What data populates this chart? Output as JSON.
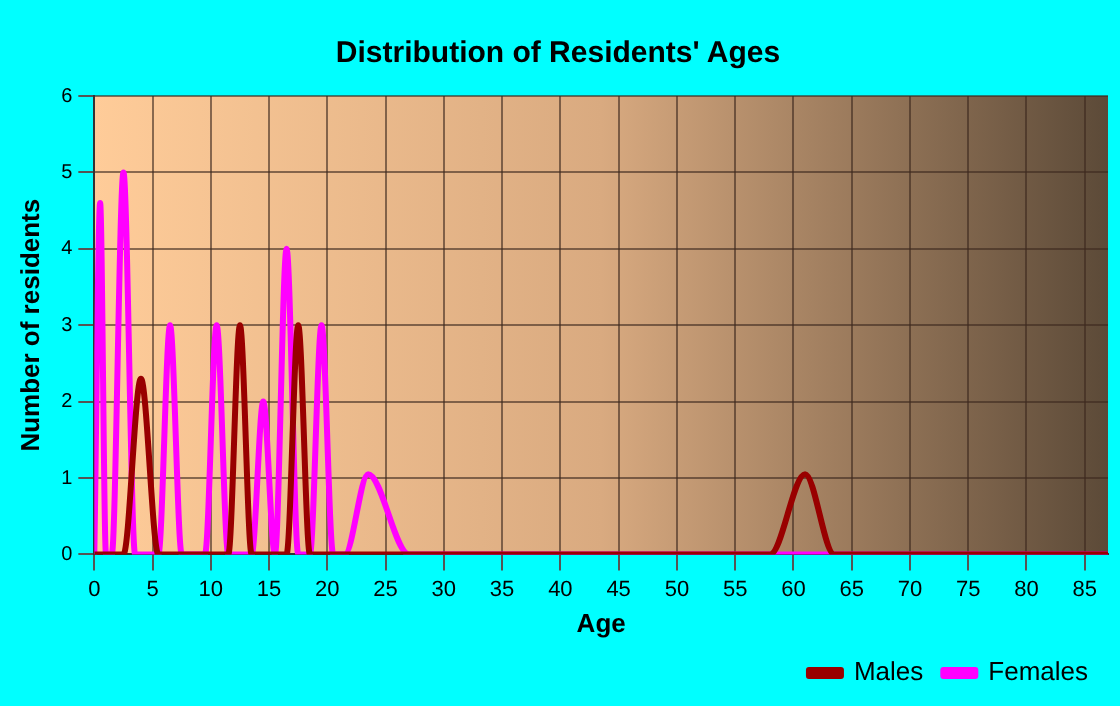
{
  "chart_data": {
    "type": "line",
    "title": "Distribution of Residents' Ages",
    "xlabel": "Age",
    "ylabel": "Number of residents",
    "xlim": [
      0,
      87
    ],
    "xticks": [
      0,
      5,
      10,
      15,
      20,
      25,
      30,
      35,
      40,
      45,
      50,
      55,
      60,
      65,
      70,
      75,
      80,
      85
    ],
    "ylim": [
      0,
      6
    ],
    "yticks": [
      0,
      1,
      2,
      3,
      4,
      5,
      6
    ],
    "grid": true,
    "legend": "bottom right",
    "marker": "none",
    "line_style": "solid",
    "series": [
      {
        "name": "Males",
        "color": "#990000",
        "x": [
          0,
          2.5,
          4,
          5.5,
          11.5,
          12.5,
          13.5,
          16.5,
          17.5,
          18.5,
          58,
          61,
          63.5,
          87
        ],
        "values": [
          0,
          0,
          2.3,
          0,
          0,
          3,
          0,
          0,
          3,
          0,
          0,
          1.05,
          0,
          0
        ]
      },
      {
        "name": "Females",
        "color": "#ff00ff",
        "x": [
          0,
          0.5,
          1,
          1.5,
          2.5,
          3.5,
          5.5,
          6.5,
          7.5,
          9.5,
          10.5,
          11.5,
          13.5,
          14.5,
          15.5,
          16.5,
          17.5,
          18.5,
          19.5,
          20.5,
          21.5,
          23.5,
          27,
          87
        ],
        "values": [
          0,
          4.6,
          0,
          0,
          5,
          0,
          0,
          3,
          0,
          0,
          3,
          0,
          0,
          2,
          0,
          4,
          0,
          0,
          3,
          0,
          0,
          1.05,
          0,
          0
        ]
      }
    ]
  }
}
